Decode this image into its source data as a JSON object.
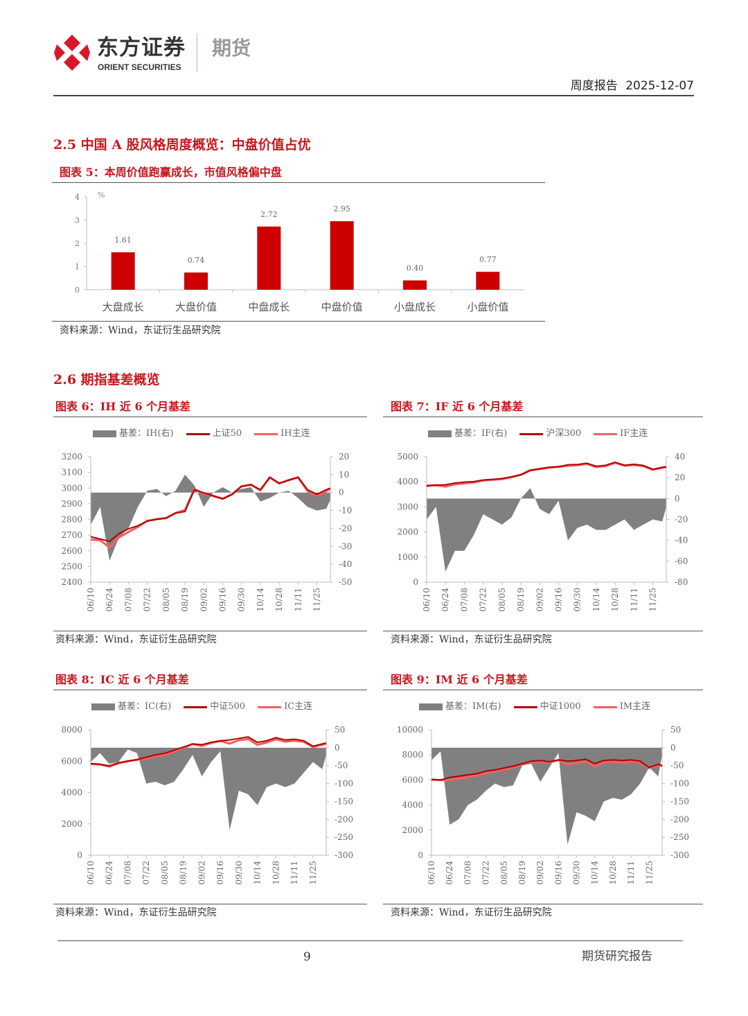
{
  "header": {
    "logo_cn": "东方证券",
    "logo_en": "ORIENT SECURITIES",
    "logo_sub": "期货",
    "report_type": "周度报告",
    "date": "2025-12-07",
    "brand_color": "#d7182a"
  },
  "section_25": {
    "title": "2.5  中国 A 股风格周度概览：中盘价值占优",
    "figure_title": "图表 5：本周价值跑赢成长，市值风格偏中盘",
    "source": "资料来源：Wind，东证衍生品研究院"
  },
  "section_26": {
    "title": "2.6  期指基差概览"
  },
  "figures": [
    {
      "title": "图表 6：IH 近 6 个月基差",
      "source": "资料来源：Wind，东证衍生品研究院",
      "legend": [
        "基差：IH(右)",
        "上证50",
        "IH主连"
      ]
    },
    {
      "title": "图表 7：IF 近 6 个月基差",
      "source": "资料来源：Wind，东证衍生品研究院",
      "legend": [
        "基差：IF(右)",
        "沪深300",
        "IF主连"
      ]
    },
    {
      "title": "图表 8：IC 近 6 个月基差",
      "source": "资料来源：Wind，东证衍生品研究院",
      "legend": [
        "基差：IC(右)",
        "中证500",
        "IC主连"
      ]
    },
    {
      "title": "图表 9：IM 近 6 个月基差",
      "source": "资料来源：Wind，东证衍生品研究院",
      "legend": [
        "基差：IM(右)",
        "中证1000",
        "IM主连"
      ]
    }
  ],
  "chart_data": [
    {
      "type": "bar",
      "ylabel": "%",
      "categories": [
        "大盘成长",
        "大盘价值",
        "中盘成长",
        "中盘价值",
        "小盘成长",
        "小盘价值"
      ],
      "values": [
        1.61,
        0.74,
        2.72,
        2.95,
        0.4,
        0.77
      ],
      "data_labels": [
        "1.61",
        "0.74",
        "2.72",
        "2.95",
        "0.40",
        "0.77"
      ],
      "ylim": [
        0,
        4
      ],
      "yticks": [
        "0",
        "1",
        "2",
        "3",
        "4"
      ],
      "color": "#cc0000",
      "grid": false
    },
    {
      "type": "line+area",
      "x": [
        "06/10",
        "06/17",
        "06/24",
        "07/01",
        "07/08",
        "07/15",
        "07/22",
        "07/29",
        "08/05",
        "08/12",
        "08/19",
        "08/26",
        "09/02",
        "09/09",
        "09/16",
        "09/23",
        "09/30",
        "10/07",
        "10/14",
        "10/21",
        "10/28",
        "11/04",
        "11/11",
        "11/18",
        "11/25",
        "12/02",
        "12/05"
      ],
      "xticks": [
        "06/10",
        "06/24",
        "07/08",
        "07/22",
        "08/05",
        "08/19",
        "09/02",
        "09/16",
        "09/30",
        "10/14",
        "10/28",
        "11/11",
        "11/25"
      ],
      "ylim_left": [
        2400,
        3200
      ],
      "yticks_left": [
        "2400",
        "2500",
        "2600",
        "2700",
        "2800",
        "2900",
        "3000",
        "3100",
        "3200"
      ],
      "ylim_right": [
        -50,
        20
      ],
      "yticks_right": [
        "-50",
        "-40",
        "-30",
        "-20",
        "-10",
        "0",
        "10",
        "20"
      ],
      "series": [
        {
          "name": "基差：IH(右)",
          "axis": "right",
          "kind": "area",
          "color": "#808080",
          "values": [
            -18,
            -8,
            -38,
            -25,
            -20,
            -8,
            1,
            2,
            -2,
            1,
            10,
            4,
            -8,
            0,
            3,
            0,
            2,
            3,
            -5,
            -3,
            0,
            1,
            -3,
            -8,
            -10,
            -9,
            -4
          ]
        },
        {
          "name": "上证50",
          "axis": "left",
          "kind": "line",
          "color": "#b00000",
          "values": [
            2690,
            2675,
            2660,
            2710,
            2740,
            2760,
            2790,
            2800,
            2810,
            2840,
            2850,
            2990,
            2970,
            2950,
            2930,
            2960,
            3010,
            3020,
            2990,
            3070,
            3030,
            3050,
            3070,
            2990,
            2960,
            2990,
            3000
          ]
        },
        {
          "name": "IH主连",
          "axis": "left",
          "kind": "line",
          "color": "#f06262",
          "values": [
            2672,
            2667,
            2622,
            2685,
            2720,
            2752,
            2791,
            2802,
            2808,
            2841,
            2860,
            2994,
            2962,
            2950,
            2933,
            2960,
            3012,
            3023,
            2985,
            3067,
            3030,
            3051,
            3067,
            2982,
            2950,
            2981,
            2996
          ]
        }
      ]
    },
    {
      "type": "line+area",
      "x": [
        "06/10",
        "06/17",
        "06/24",
        "07/01",
        "07/08",
        "07/15",
        "07/22",
        "07/29",
        "08/05",
        "08/12",
        "08/19",
        "08/26",
        "09/02",
        "09/09",
        "09/16",
        "09/23",
        "09/30",
        "10/07",
        "10/14",
        "10/21",
        "10/28",
        "11/04",
        "11/11",
        "11/18",
        "11/25",
        "12/02",
        "12/05"
      ],
      "xticks": [
        "06/10",
        "06/24",
        "07/08",
        "07/22",
        "08/05",
        "08/19",
        "09/02",
        "09/16",
        "09/30",
        "10/14",
        "10/28",
        "11/11",
        "11/25"
      ],
      "ylim_left": [
        0,
        5000
      ],
      "yticks_left": [
        "0",
        "1000",
        "2000",
        "3000",
        "4000",
        "5000"
      ],
      "ylim_right": [
        -80,
        40
      ],
      "yticks_right": [
        "-80",
        "-60",
        "-40",
        "-20",
        "0",
        "20",
        "40"
      ],
      "series": [
        {
          "name": "基差：IF(右)",
          "axis": "right",
          "kind": "area",
          "color": "#808080",
          "values": [
            -20,
            -8,
            -70,
            -50,
            -50,
            -35,
            -15,
            -20,
            -25,
            -18,
            0,
            10,
            -10,
            -15,
            -2,
            -40,
            -28,
            -25,
            -30,
            -30,
            -25,
            -20,
            -30,
            -25,
            -20,
            -22,
            -8
          ]
        },
        {
          "name": "沪深300",
          "axis": "left",
          "kind": "line",
          "color": "#b00000",
          "values": [
            3850,
            3870,
            3880,
            3950,
            3990,
            4010,
            4070,
            4100,
            4130,
            4200,
            4280,
            4450,
            4520,
            4580,
            4600,
            4680,
            4690,
            4740,
            4620,
            4660,
            4780,
            4660,
            4700,
            4650,
            4500,
            4580,
            4600
          ]
        },
        {
          "name": "IF主连",
          "axis": "left",
          "kind": "line",
          "color": "#f06262",
          "values": [
            3830,
            3862,
            3810,
            3900,
            3940,
            3975,
            4055,
            4080,
            4105,
            4182,
            4280,
            4460,
            4510,
            4565,
            4598,
            4640,
            4662,
            4715,
            4590,
            4630,
            4755,
            4640,
            4670,
            4625,
            4480,
            4558,
            4592
          ]
        }
      ]
    },
    {
      "type": "line+area",
      "x": [
        "06/10",
        "06/17",
        "06/24",
        "07/01",
        "07/08",
        "07/15",
        "07/22",
        "07/29",
        "08/05",
        "08/12",
        "08/19",
        "08/26",
        "09/02",
        "09/09",
        "09/16",
        "09/23",
        "09/30",
        "10/07",
        "10/14",
        "10/21",
        "10/28",
        "11/04",
        "11/11",
        "11/18",
        "11/25",
        "12/02",
        "12/05"
      ],
      "xticks": [
        "06/10",
        "06/24",
        "07/08",
        "07/22",
        "08/05",
        "08/19",
        "09/02",
        "09/16",
        "09/30",
        "10/14",
        "10/28",
        "11/11",
        "11/25"
      ],
      "ylim_left": [
        0,
        8000
      ],
      "yticks_left": [
        "0",
        "2000",
        "4000",
        "6000",
        "8000"
      ],
      "ylim_right": [
        -300,
        50
      ],
      "yticks_right": [
        "-300",
        "-250",
        "-200",
        "-150",
        "-100",
        "-50",
        "0",
        "50"
      ],
      "series": [
        {
          "name": "基差：IC(右)",
          "axis": "right",
          "kind": "area",
          "color": "#808080",
          "values": [
            -40,
            -15,
            -45,
            -40,
            -5,
            -15,
            -100,
            -95,
            -105,
            -95,
            -60,
            -20,
            -80,
            -40,
            -10,
            -230,
            -120,
            -130,
            -160,
            -110,
            -100,
            -110,
            -100,
            -70,
            -40,
            -60,
            -20
          ]
        },
        {
          "name": "中证500",
          "axis": "left",
          "kind": "line",
          "color": "#b00000",
          "values": [
            5850,
            5800,
            5700,
            5900,
            6000,
            6100,
            6250,
            6400,
            6500,
            6700,
            6900,
            7100,
            7050,
            7200,
            7300,
            7350,
            7450,
            7550,
            7200,
            7300,
            7500,
            7350,
            7400,
            7300,
            6950,
            7100,
            7150
          ]
        },
        {
          "name": "IC主连",
          "axis": "left",
          "kind": "line",
          "color": "#f06262",
          "values": [
            5810,
            5785,
            5655,
            5860,
            5995,
            6085,
            6150,
            6305,
            6395,
            6605,
            6840,
            7080,
            6970,
            7160,
            7290,
            7120,
            7330,
            7420,
            7040,
            7190,
            7400,
            7240,
            7300,
            7230,
            6910,
            7040,
            7130
          ]
        }
      ]
    },
    {
      "type": "line+area",
      "x": [
        "06/10",
        "06/17",
        "06/24",
        "07/01",
        "07/08",
        "07/15",
        "07/22",
        "07/29",
        "08/05",
        "08/12",
        "08/19",
        "08/26",
        "09/02",
        "09/09",
        "09/16",
        "09/23",
        "09/30",
        "10/07",
        "10/14",
        "10/21",
        "10/28",
        "11/04",
        "11/11",
        "11/18",
        "11/25",
        "12/02",
        "12/05"
      ],
      "xticks": [
        "06/10",
        "06/24",
        "07/08",
        "07/22",
        "08/05",
        "08/19",
        "09/02",
        "09/16",
        "09/30",
        "10/14",
        "10/28",
        "11/11",
        "11/25"
      ],
      "ylim_left": [
        0,
        10000
      ],
      "yticks_left": [
        "0",
        "2000",
        "4000",
        "6000",
        "8000",
        "10000"
      ],
      "ylim_right": [
        -300,
        50
      ],
      "yticks_right": [
        "-300",
        "-250",
        "-200",
        "-150",
        "-100",
        "-50",
        "0",
        "50"
      ],
      "series": [
        {
          "name": "基差：IM(右)",
          "axis": "right",
          "kind": "area",
          "color": "#808080",
          "values": [
            -35,
            -10,
            -215,
            -200,
            -160,
            -145,
            -120,
            -100,
            -110,
            -105,
            -50,
            -45,
            -95,
            -55,
            -15,
            -270,
            -180,
            -190,
            -205,
            -150,
            -140,
            -145,
            -130,
            -100,
            -55,
            -80,
            -20
          ]
        },
        {
          "name": "中证1000",
          "axis": "left",
          "kind": "line",
          "color": "#b00000",
          "values": [
            6050,
            6000,
            6200,
            6300,
            6400,
            6500,
            6700,
            6800,
            6950,
            7100,
            7300,
            7500,
            7550,
            7450,
            7600,
            7500,
            7550,
            7650,
            7300,
            7550,
            7600,
            7550,
            7600,
            7500,
            7000,
            7250,
            7150
          ]
        },
        {
          "name": "IM主连",
          "axis": "left",
          "kind": "line",
          "color": "#f06262",
          "values": [
            6015,
            5990,
            5985,
            6100,
            6240,
            6355,
            6580,
            6700,
            6840,
            6995,
            7250,
            7455,
            7455,
            7395,
            7585,
            7230,
            7370,
            7460,
            7095,
            7400,
            7460,
            7405,
            7470,
            7400,
            6945,
            7170,
            7130
          ]
        }
      ]
    }
  ],
  "footer": {
    "page_number": "9",
    "right_text": "期货研究报告"
  }
}
